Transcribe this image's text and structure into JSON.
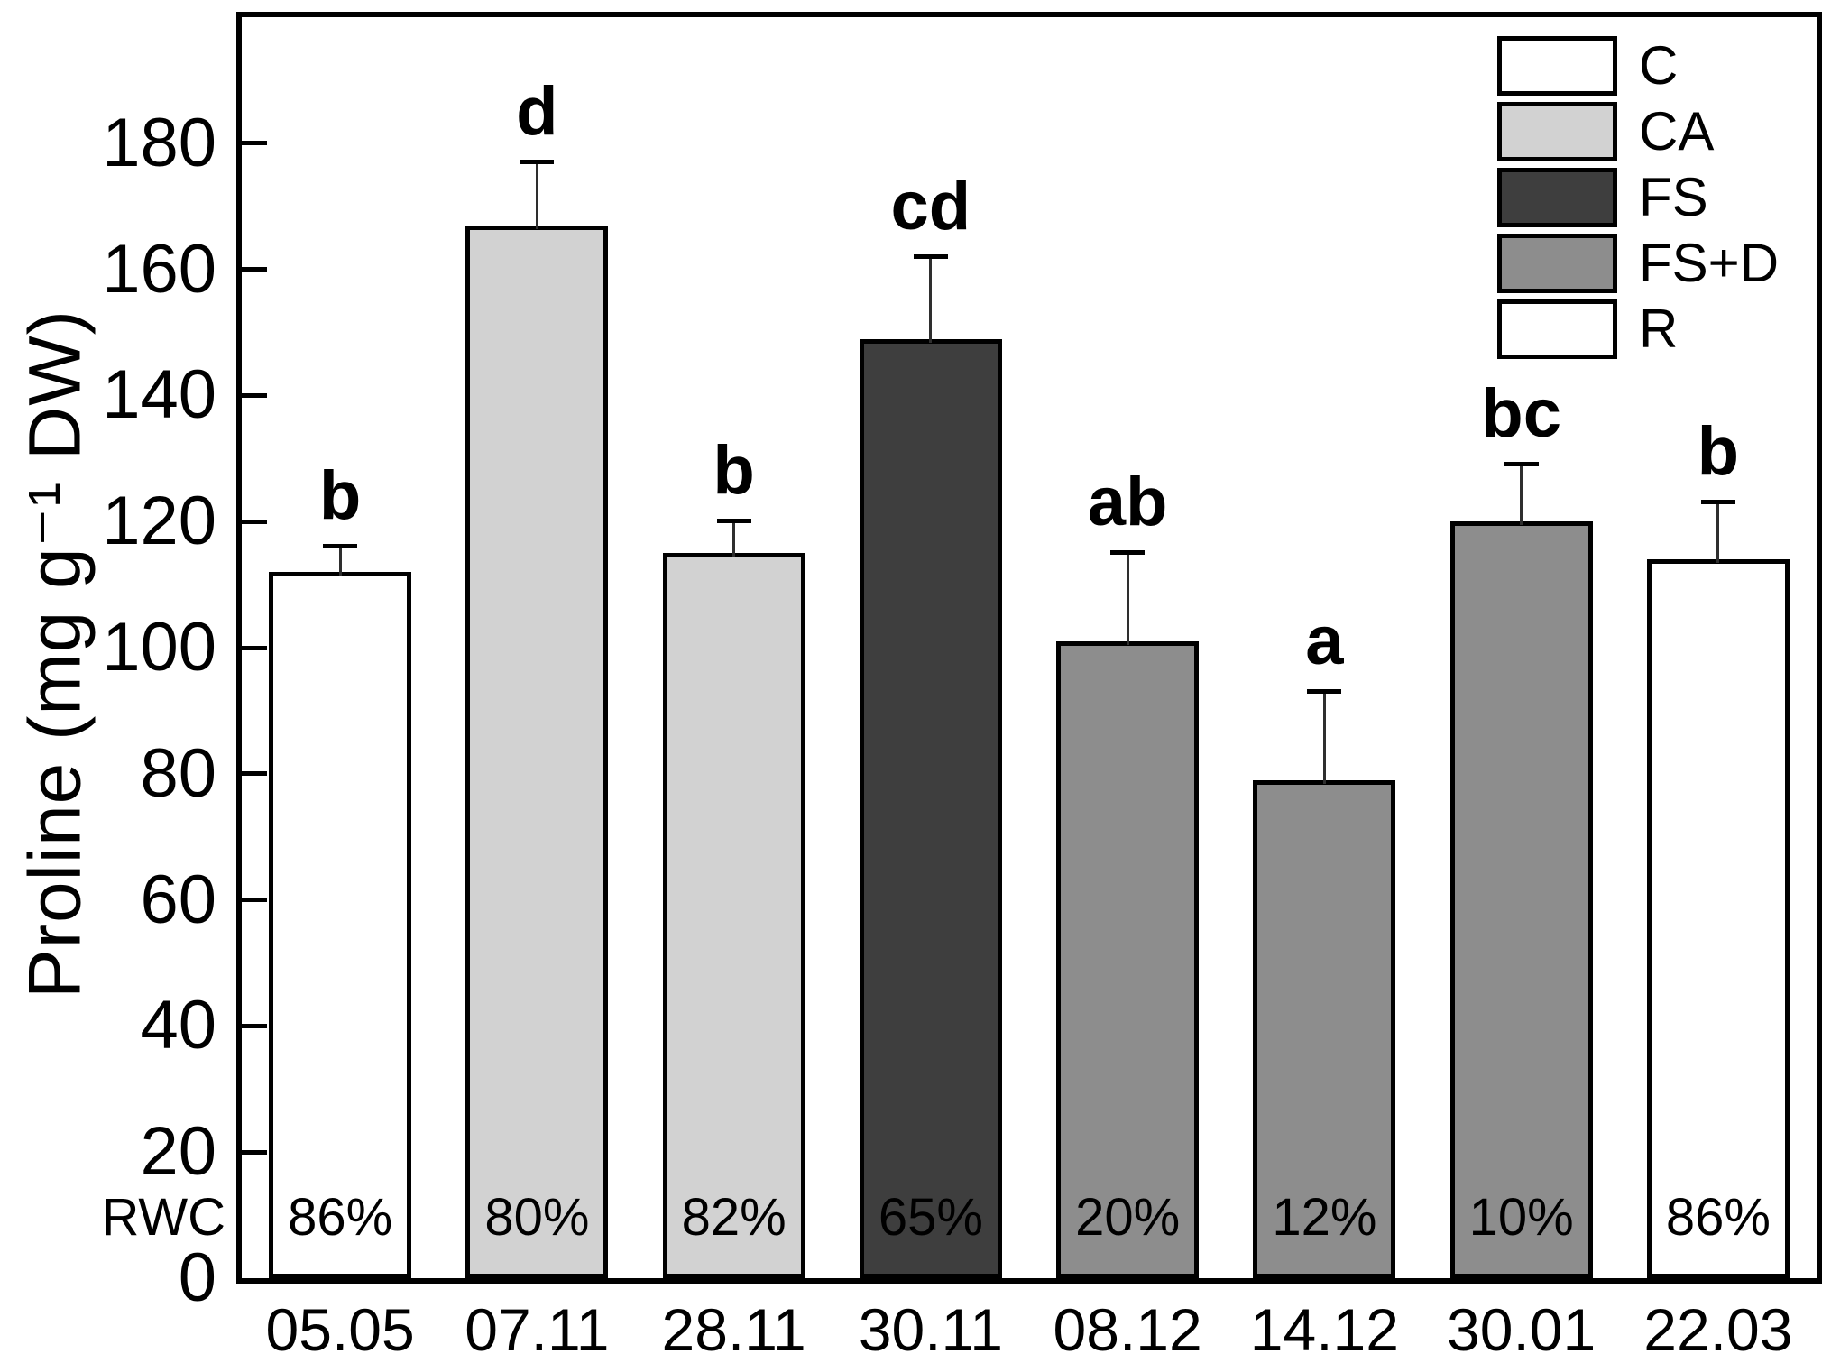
{
  "figure": {
    "y_axis": {
      "title": "Proline (mg g⁻¹ DW)",
      "tick_values": [
        0,
        20,
        40,
        60,
        80,
        100,
        120,
        140,
        160,
        180
      ],
      "ymax": 200,
      "bottom_row_label": "RWC"
    },
    "legend": {
      "items": [
        {
          "label": "C",
          "fill": "#ffffff",
          "dotted": false
        },
        {
          "label": "CA",
          "fill": "#d2d2d2",
          "dotted": true
        },
        {
          "label": "FS",
          "fill": "#3e3e3e",
          "dotted": false
        },
        {
          "label": "FS+D",
          "fill": "#8d8d8d",
          "dotted": false
        },
        {
          "label": "R",
          "fill": "#ffffff",
          "dotted": false
        }
      ]
    },
    "colors": {
      "C": "#ffffff",
      "CA": "#d2d2d2",
      "FS": "#3e3e3e",
      "FS+D": "#8d8d8d",
      "R": "#ffffff",
      "axis": "#000000"
    },
    "chart_data": {
      "type": "bar",
      "title": "",
      "xlabel": "",
      "ylabel": "Proline (mg g⁻¹ DW)",
      "ylim": [
        0,
        200
      ],
      "grid": false,
      "legend_position": "top-right",
      "categories": [
        "05.05",
        "07.11",
        "28.11",
        "30.11",
        "08.12",
        "14.12",
        "30.01",
        "22.03"
      ],
      "series": [
        {
          "name": "Proline",
          "values": [
            112,
            167,
            115,
            149,
            101,
            79,
            120,
            114
          ],
          "errors_plus": [
            4,
            10,
            5,
            13,
            14,
            14,
            9,
            9
          ]
        }
      ],
      "bars": [
        {
          "date": "05.05",
          "group": "C",
          "value": 112,
          "error": 4,
          "letter": "b",
          "rwc": "86%"
        },
        {
          "date": "07.11",
          "group": "CA",
          "value": 167,
          "error": 10,
          "letter": "d",
          "rwc": "80%"
        },
        {
          "date": "28.11",
          "group": "CA",
          "value": 115,
          "error": 5,
          "letter": "b",
          "rwc": "82%"
        },
        {
          "date": "30.11",
          "group": "FS",
          "value": 149,
          "error": 13,
          "letter": "cd",
          "rwc": "65%"
        },
        {
          "date": "08.12",
          "group": "FS+D",
          "value": 101,
          "error": 14,
          "letter": "ab",
          "rwc": "20%"
        },
        {
          "date": "14.12",
          "group": "FS+D",
          "value": 79,
          "error": 14,
          "letter": "a",
          "rwc": "12%"
        },
        {
          "date": "30.01",
          "group": "FS+D",
          "value": 120,
          "error": 9,
          "letter": "bc",
          "rwc": "10%"
        },
        {
          "date": "22.03",
          "group": "R",
          "value": 114,
          "error": 9,
          "letter": "b",
          "rwc": "86%"
        }
      ]
    }
  }
}
